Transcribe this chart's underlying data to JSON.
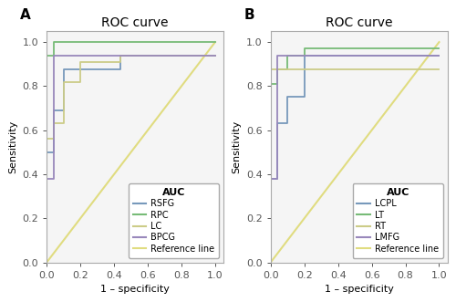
{
  "title": "ROC curve",
  "xlabel": "1 – specificity",
  "ylabel": "Sensitivity",
  "panel_A_label": "A",
  "panel_B_label": "B",
  "legend_title": "AUC",
  "xlim": [
    0.0,
    1.05
  ],
  "ylim": [
    0.0,
    1.05
  ],
  "xticks": [
    0.0,
    0.2,
    0.4,
    0.6,
    0.8,
    1.0
  ],
  "yticks": [
    0.0,
    0.2,
    0.4,
    0.6,
    0.8,
    1.0
  ],
  "reference_line_color": "#e0dc80",
  "panel_A": {
    "curves": [
      {
        "label": "RSFG",
        "color": "#7799bb",
        "x": [
          0.0,
          0.0,
          0.04,
          0.04,
          0.1,
          0.1,
          0.44,
          0.44,
          1.0
        ],
        "y": [
          0.0,
          0.5,
          0.5,
          0.69,
          0.69,
          0.875,
          0.875,
          0.94,
          0.94
        ]
      },
      {
        "label": "RPC",
        "color": "#77bb77",
        "x": [
          0.0,
          0.0,
          0.04,
          0.04,
          1.0
        ],
        "y": [
          0.0,
          0.94,
          0.94,
          1.0,
          1.0
        ]
      },
      {
        "label": "LC",
        "color": "#cccc88",
        "x": [
          0.0,
          0.0,
          0.04,
          0.04,
          0.1,
          0.1,
          0.2,
          0.2,
          0.44,
          0.44,
          1.0
        ],
        "y": [
          0.0,
          0.56,
          0.56,
          0.63,
          0.63,
          0.82,
          0.82,
          0.91,
          0.91,
          0.94,
          0.94
        ]
      },
      {
        "label": "BPCG",
        "color": "#9988bb",
        "x": [
          0.0,
          0.0,
          0.04,
          0.04,
          1.0
        ],
        "y": [
          0.0,
          0.38,
          0.38,
          0.94,
          0.94
        ]
      }
    ]
  },
  "panel_B": {
    "curves": [
      {
        "label": "LCPL",
        "color": "#7799bb",
        "x": [
          0.0,
          0.0,
          0.04,
          0.04,
          0.1,
          0.1,
          0.2,
          0.2,
          1.0
        ],
        "y": [
          0.0,
          0.38,
          0.38,
          0.63,
          0.63,
          0.75,
          0.75,
          0.94,
          0.94
        ]
      },
      {
        "label": "LT",
        "color": "#77bb77",
        "x": [
          0.0,
          0.0,
          0.04,
          0.04,
          0.1,
          0.1,
          0.2,
          0.2,
          0.65,
          0.65,
          1.0
        ],
        "y": [
          0.0,
          0.81,
          0.81,
          0.875,
          0.875,
          0.94,
          0.94,
          0.97,
          0.97,
          0.97,
          0.97
        ]
      },
      {
        "label": "RT",
        "color": "#cccc88",
        "x": [
          0.0,
          0.0,
          0.1,
          0.1,
          1.0
        ],
        "y": [
          0.0,
          0.875,
          0.875,
          0.875,
          0.875
        ]
      },
      {
        "label": "LMFG",
        "color": "#9988bb",
        "x": [
          0.0,
          0.0,
          0.04,
          0.04,
          1.0
        ],
        "y": [
          0.0,
          0.38,
          0.38,
          0.94,
          0.94
        ]
      }
    ]
  },
  "background_color": "#ffffff",
  "axes_bg_color": "#f5f5f5",
  "axes_edge_color": "#aaaaaa",
  "tick_color": "#555555",
  "grid_color": "#ffffff",
  "font_size": 8,
  "title_font_size": 10,
  "label_font_size": 8
}
